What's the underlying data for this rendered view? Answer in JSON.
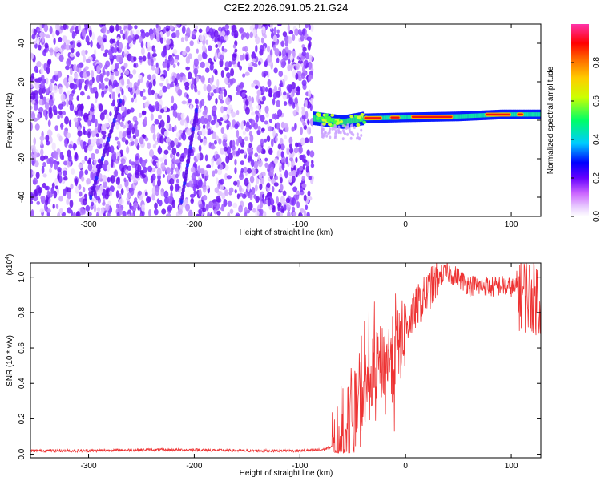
{
  "figure_title": "C2E2.2026.091.05.21.G24",
  "chart_data": [
    {
      "type": "heatmap",
      "title": "",
      "xlabel": "Height of straight line (km)",
      "ylabel": "Frequency (Hz)",
      "xlim": [
        -355,
        128
      ],
      "ylim": [
        -50,
        50
      ],
      "x_ticks": [
        -300,
        -200,
        -100,
        0,
        100
      ],
      "y_ticks": [
        -40,
        -20,
        0,
        20,
        40
      ],
      "x_tick_labels": [
        "-300",
        "-200",
        "-100",
        "0",
        "100"
      ],
      "y_tick_labels": [
        "-40",
        "-20",
        "0",
        "20",
        "40"
      ],
      "grid": false,
      "description_regions": {
        "noise_region_x": [
          -355,
          -88
        ],
        "signal_band_x": [
          -88,
          128
        ],
        "signal_band_center_hz": [
          [
            -88,
            1
          ],
          [
            -60,
            -1
          ],
          [
            -40,
            1
          ],
          [
            0,
            1.5
          ],
          [
            50,
            2
          ],
          [
            90,
            3
          ],
          [
            128,
            3
          ]
        ]
      },
      "colorbar": {
        "label": "Normalized spectral amplitude",
        "range": [
          0,
          1
        ],
        "ticks": [
          0.0,
          0.2,
          0.4,
          0.6,
          0.8
        ],
        "tick_labels": [
          "0.0",
          "0.2",
          "0.4",
          "0.6",
          "0.8"
        ],
        "colors": [
          "#ffffff",
          "#cc66ff",
          "#6600ff",
          "#0000ff",
          "#00ccff",
          "#00ff66",
          "#ccff00",
          "#ffcc00",
          "#ff6600",
          "#ff0000",
          "#ff33aa"
        ]
      }
    },
    {
      "type": "line",
      "title": "",
      "xlabel": "Height of straight line (km)",
      "ylabel": "SNR (10 * v/v)",
      "y_multiplier_label": "(x10",
      "y_multiplier_exp": "4",
      "xlim": [
        -355,
        128
      ],
      "ylim": [
        -0.02,
        1.08
      ],
      "x_ticks": [
        -300,
        -200,
        -100,
        0,
        100
      ],
      "y_ticks": [
        0.0,
        0.2,
        0.4,
        0.6,
        0.8,
        1.0
      ],
      "x_tick_labels": [
        "-300",
        "-200",
        "-100",
        "0",
        "100"
      ],
      "y_tick_labels": [
        "0.0",
        "0.2",
        "0.4",
        "0.6",
        "0.8",
        "1.0"
      ],
      "grid": false,
      "series": [
        {
          "color": "#ee3333",
          "x": [
            -355,
            -300,
            -250,
            -200,
            -150,
            -100,
            -80,
            -70,
            -65,
            -60,
            -55,
            -50,
            -45,
            -40,
            -35,
            -30,
            -25,
            -20,
            -15,
            -10,
            -5,
            0,
            5,
            10,
            15,
            20,
            25,
            30,
            35,
            40,
            45,
            50,
            55,
            60,
            65,
            70,
            75,
            80,
            85,
            90,
            95,
            100,
            105,
            110,
            115,
            120,
            128
          ],
          "y": [
            0.02,
            0.02,
            0.025,
            0.025,
            0.02,
            0.02,
            0.025,
            0.04,
            0.07,
            0.12,
            0.18,
            0.25,
            0.32,
            0.38,
            0.42,
            0.48,
            0.52,
            0.55,
            0.57,
            0.6,
            0.65,
            0.72,
            0.78,
            0.84,
            0.88,
            0.92,
            0.96,
            1.0,
            1.02,
            1.03,
            1.02,
            1.0,
            0.98,
            0.96,
            0.96,
            0.95,
            0.96,
            0.95,
            0.95,
            0.96,
            0.95,
            0.95,
            0.94,
            0.93,
            0.92,
            0.92,
            0.9
          ]
        }
      ]
    }
  ]
}
